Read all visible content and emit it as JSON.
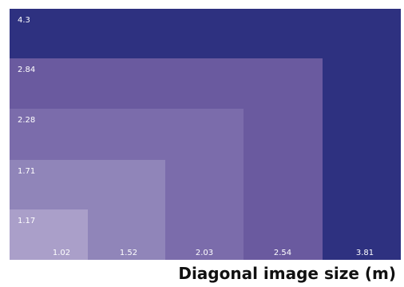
{
  "chart_data": {
    "type": "nested-rectangles",
    "xlabel": "Diagonal image size (m)",
    "levels": [
      {
        "label": "4.3",
        "x_label": "3.81",
        "color": "#2e3180"
      },
      {
        "label": "2.84",
        "x_label": "2.54",
        "color": "#6a5a9f"
      },
      {
        "label": "2.28",
        "x_label": "2.03",
        "color": "#7b6cab"
      },
      {
        "label": "1.71",
        "x_label": "1.52",
        "color": "#9085b9"
      },
      {
        "label": "1.17",
        "x_label": "1.02",
        "color": "#aa9fc9"
      }
    ]
  }
}
